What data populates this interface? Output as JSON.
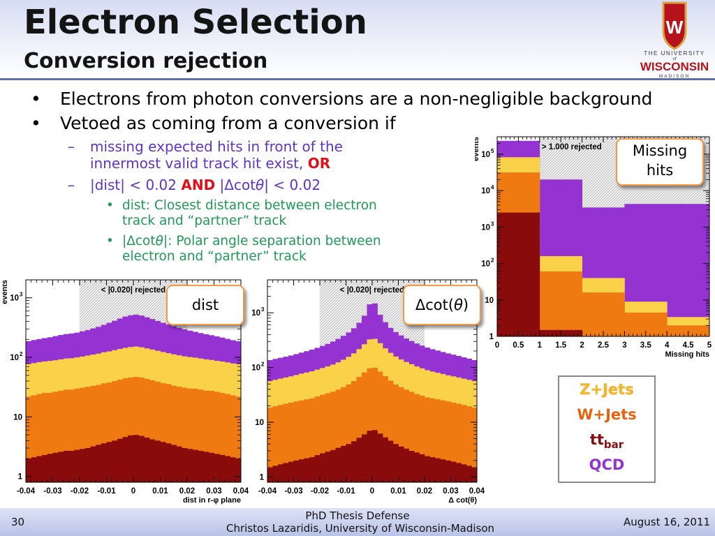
{
  "header": {
    "title": "Electron Selection",
    "subtitle": "Conversion rejection",
    "logo": {
      "line1": "THE UNIVERSITY",
      "line2": "of",
      "line3": "WISCONSIN",
      "line4": "MADISON",
      "crest_letter": "W"
    }
  },
  "bullets": {
    "b1": "Electrons from photon conversions are a non-negligible background",
    "b2": "Vetoed as coming from a conversion if",
    "sub1_text1": "missing expected hits in front of the",
    "sub1_text2": "innermost valid track hit exist,",
    "sub1_or": "OR",
    "sub2_a": "|dist| < 0.02",
    "sub2_and": "AND",
    "sub2_b": "|Δcot",
    "sub2_theta": "θ",
    "sub2_c": "| < 0.02",
    "dist_line1": "dist: Closest distance between electron",
    "dist_line2": "track and “partner” track",
    "dcot_a": "|Δcot",
    "dcot_theta": "θ",
    "dcot_b": "|: Polar angle separation between",
    "dcot_line2": "electron and “partner” track",
    "bullet_glyph": "•",
    "dash_glyph": "–"
  },
  "callouts": {
    "missing_hits_line1": "Missing",
    "missing_hits_line2": "hits",
    "dist": "dist",
    "dcot_a": "Δcot(",
    "dcot_theta": "θ",
    "dcot_b": ")"
  },
  "legend": {
    "zjets": "Z+Jets",
    "wjets": "W+Jets",
    "ttbar_main": "tt",
    "ttbar_sub": "bar",
    "qcd": "QCD"
  },
  "colors": {
    "zjets": "#f9d24a",
    "wjets": "#f07a12",
    "ttbar": "#8a0b0b",
    "qcd": "#9432d2",
    "bullet_text": "#5d34c7",
    "sub_bullet_text": "#1f9a57",
    "emphasis": "#e0101a"
  },
  "footer": {
    "page": "30",
    "line1": "PhD Thesis Defense",
    "line2": "Christos Lazaridis, University of Wisconsin-Madison",
    "date": "August 16, 2011"
  },
  "chart_data": [
    {
      "type": "bar",
      "stacked": true,
      "log_y": true,
      "ylabel": "events",
      "xlabel": "Missing hits",
      "x_ticks": [
        "0",
        "0.5",
        "1",
        "1.5",
        "2",
        "2.5",
        "3",
        "3.5",
        "4",
        "4.5",
        "5"
      ],
      "y_ticks": [
        "1",
        "10",
        "10^2",
        "10^3",
        "10^4",
        "10^5"
      ],
      "y_tick_labels": [
        "1",
        "10",
        "10",
        "10",
        "10",
        "10"
      ],
      "y_tick_exponents": [
        "",
        "",
        "2",
        "3",
        "4",
        "5"
      ],
      "ylim": [
        1,
        300000
      ],
      "annotation": "> 1.000 rejected",
      "rejected_region": [
        1,
        5
      ],
      "bin_edges": [
        0,
        1,
        2,
        3,
        4,
        5
      ],
      "series": [
        {
          "name": "tt_bar",
          "values": [
            2500,
            1.5,
            1,
            1,
            1
          ]
        },
        {
          "name": "W+Jets",
          "values": [
            29000,
            59,
            15,
            3.5,
            1
          ]
        },
        {
          "name": "Z+Jets",
          "values": [
            51000,
            99,
            24,
            4.5,
            1.4
          ]
        },
        {
          "name": "QCD",
          "values": [
            150000,
            20000,
            3400,
            4300,
            4300
          ]
        }
      ]
    },
    {
      "type": "bar",
      "stacked": true,
      "log_y": true,
      "ylabel": "events",
      "xlabel": "dist in r-φ plane",
      "x_ticks": [
        "-0.04",
        "-0.03",
        "-0.02",
        "-0.01",
        "0",
        "0.01",
        "0.02",
        "0.03",
        "0.04"
      ],
      "x_range": [
        -0.04,
        0.04
      ],
      "y_ticks": [
        "1",
        "10",
        "10^2",
        "10^3"
      ],
      "y_tick_labels": [
        "1",
        "10",
        "10",
        "10"
      ],
      "y_tick_exponents": [
        "",
        "",
        "2",
        "3"
      ],
      "ylim": [
        0.8,
        2000
      ],
      "annotation": "< |0.020| rejected",
      "rejected_region": [
        -0.02,
        0.02
      ],
      "bins": 40,
      "series": [
        {
          "name": "tt_bar",
          "values": [
            2.0,
            2.1,
            2.2,
            2.3,
            2.4,
            2.5,
            2.6,
            2.7,
            2.7,
            2.8,
            2.9,
            3.0,
            3.2,
            3.4,
            3.6,
            3.8,
            4.0,
            4.3,
            4.6,
            4.9,
            5.0,
            4.8,
            4.5,
            4.2,
            4.0,
            3.8,
            3.6,
            3.4,
            3.2,
            3.0,
            2.9,
            2.8,
            2.7,
            2.6,
            2.5,
            2.4,
            2.3,
            2.2,
            2.1,
            2.0
          ]
        },
        {
          "name": "W+Jets",
          "values": [
            20,
            21,
            22,
            23,
            23,
            24,
            25,
            26,
            26,
            27,
            28,
            29,
            30,
            31,
            33,
            34,
            36,
            38,
            40,
            41,
            42,
            41,
            39,
            37,
            35,
            33,
            32,
            30,
            29,
            28,
            27,
            27,
            26,
            25,
            25,
            24,
            23,
            22,
            21,
            20
          ]
        },
        {
          "name": "Z+Jets",
          "values": [
            55,
            57,
            59,
            60,
            62,
            63,
            65,
            67,
            68,
            70,
            72,
            75,
            78,
            81,
            85,
            88,
            92,
            96,
            100,
            103,
            105,
            102,
            98,
            94,
            90,
            86,
            82,
            79,
            76,
            73,
            71,
            69,
            67,
            65,
            63,
            61,
            60,
            58,
            56,
            55
          ]
        },
        {
          "name": "QCD",
          "values": [
            110,
            115,
            120,
            125,
            130,
            138,
            145,
            150,
            155,
            160,
            170,
            180,
            195,
            210,
            230,
            255,
            280,
            310,
            340,
            360,
            370,
            355,
            330,
            305,
            280,
            258,
            238,
            220,
            205,
            190,
            180,
            170,
            160,
            152,
            145,
            138,
            130,
            122,
            115,
            110
          ]
        }
      ]
    },
    {
      "type": "bar",
      "stacked": true,
      "log_y": true,
      "ylabel": "events",
      "xlabel": "Δ cot(θ)",
      "x_ticks": [
        "-0.04",
        "-0.03",
        "-0.02",
        "-0.01",
        "0",
        "0.01",
        "0.02",
        "0.03",
        "0.04"
      ],
      "x_range": [
        -0.04,
        0.04
      ],
      "y_ticks": [
        "1",
        "10",
        "10^2",
        "10^3"
      ],
      "y_tick_labels": [
        "1",
        "10",
        "10",
        "10"
      ],
      "y_tick_exponents": [
        "",
        "",
        "2",
        "3"
      ],
      "ylim": [
        0.8,
        4000
      ],
      "annotation": "< |0.020| rejected",
      "rejected_region": [
        -0.02,
        0.02
      ],
      "bins": 40,
      "series": [
        {
          "name": "tt_bar",
          "values": [
            1.5,
            1.6,
            1.7,
            1.8,
            1.9,
            2.0,
            2.1,
            2.2,
            2.3,
            2.5,
            2.7,
            2.9,
            3.1,
            3.4,
            3.7,
            4.0,
            4.5,
            5.2,
            6.0,
            7.0,
            7.2,
            6.2,
            5.3,
            4.6,
            4.0,
            3.6,
            3.3,
            3.0,
            2.8,
            2.6,
            2.4,
            2.3,
            2.2,
            2.1,
            2.0,
            1.9,
            1.8,
            1.7,
            1.6,
            1.5
          ]
        },
        {
          "name": "W+Jets",
          "values": [
            17,
            18,
            19,
            20,
            21,
            22,
            23,
            24,
            25,
            27,
            29,
            31,
            33,
            36,
            40,
            45,
            52,
            62,
            75,
            90,
            92,
            78,
            64,
            53,
            45,
            40,
            36,
            33,
            30,
            28,
            26,
            25,
            24,
            23,
            22,
            21,
            20,
            19,
            18,
            17
          ]
        },
        {
          "name": "Z+Jets",
          "values": [
            38,
            40,
            42,
            44,
            46,
            49,
            52,
            55,
            58,
            62,
            66,
            71,
            77,
            85,
            95,
            108,
            125,
            150,
            185,
            230,
            235,
            195,
            155,
            128,
            110,
            97,
            87,
            79,
            72,
            66,
            61,
            57,
            54,
            51,
            48,
            46,
            44,
            42,
            40,
            38
          ]
        },
        {
          "name": "QCD",
          "values": [
            80,
            84,
            88,
            92,
            97,
            103,
            110,
            118,
            127,
            137,
            150,
            165,
            185,
            210,
            240,
            280,
            340,
            440,
            620,
            1100,
            1150,
            640,
            450,
            345,
            285,
            245,
            213,
            190,
            170,
            155,
            142,
            132,
            124,
            116,
            109,
            103,
            97,
            91,
            86,
            80
          ]
        }
      ]
    }
  ]
}
